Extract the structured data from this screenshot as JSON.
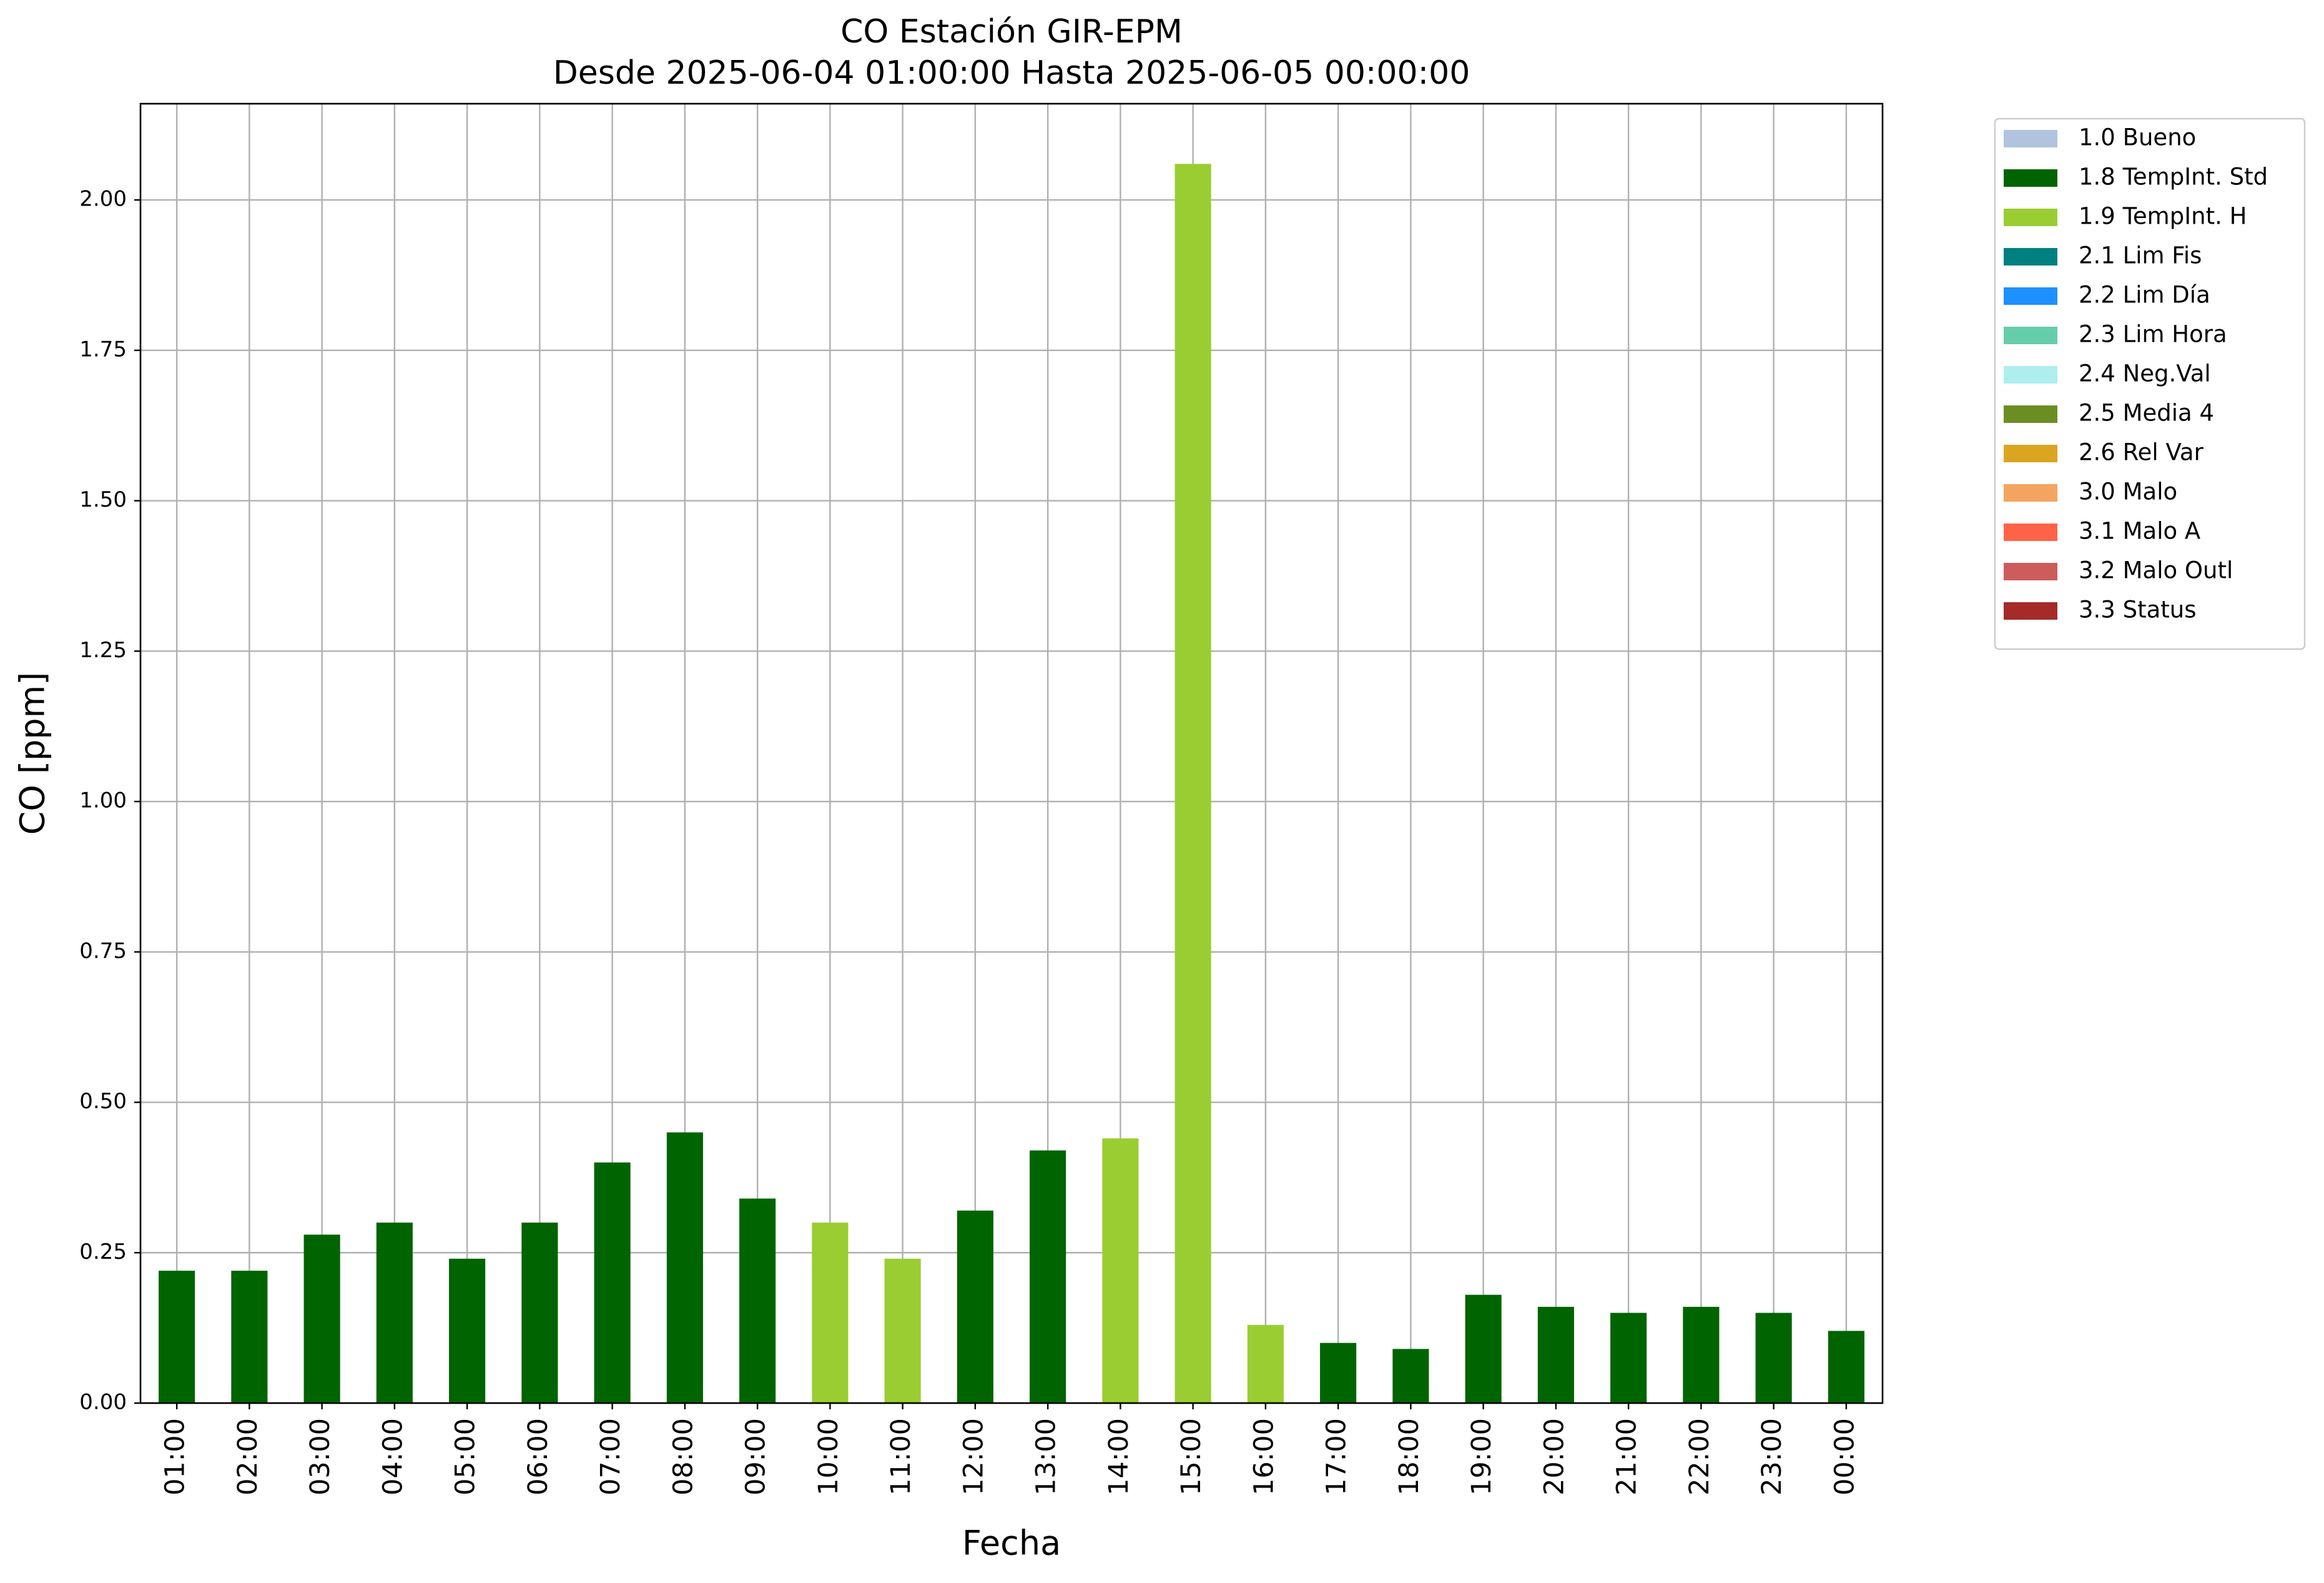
{
  "chart_data": {
    "type": "bar",
    "title": "CO Estación GIR-EPM",
    "subtitle": "Desde 2025-06-04 01:00:00 Hasta 2025-06-05 00:00:00",
    "x_label": "Fecha",
    "y_label": "CO [ppm]",
    "categories": [
      "01:00",
      "02:00",
      "03:00",
      "04:00",
      "05:00",
      "06:00",
      "07:00",
      "08:00",
      "09:00",
      "10:00",
      "11:00",
      "12:00",
      "13:00",
      "14:00",
      "15:00",
      "16:00",
      "17:00",
      "18:00",
      "19:00",
      "20:00",
      "21:00",
      "22:00",
      "23:00",
      "00:00"
    ],
    "series": [
      {
        "name": "1.0 Bueno",
        "color": "#b0c4de",
        "values": [
          null,
          null,
          null,
          null,
          null,
          null,
          null,
          null,
          null,
          null,
          null,
          null,
          null,
          null,
          null,
          null,
          null,
          null,
          null,
          null,
          null,
          null,
          null,
          null
        ]
      },
      {
        "name": "1.8 TempInt. Std",
        "color": "#006400",
        "values": [
          0.22,
          0.22,
          0.28,
          0.3,
          0.24,
          0.3,
          0.4,
          0.45,
          0.34,
          null,
          null,
          0.32,
          0.42,
          null,
          null,
          null,
          0.1,
          0.09,
          0.18,
          0.16,
          0.15,
          0.16,
          0.15,
          0.12
        ]
      },
      {
        "name": "1.9 TempInt. H",
        "color": "#9acd32",
        "values": [
          null,
          null,
          null,
          null,
          null,
          null,
          null,
          null,
          null,
          0.3,
          0.24,
          null,
          null,
          0.44,
          2.06,
          0.13,
          null,
          null,
          null,
          null,
          null,
          null,
          null,
          null
        ]
      },
      {
        "name": "2.1 Lim Fis",
        "color": "#008080",
        "values": [
          null,
          null,
          null,
          null,
          null,
          null,
          null,
          null,
          null,
          null,
          null,
          null,
          null,
          null,
          null,
          null,
          null,
          null,
          null,
          null,
          null,
          null,
          null,
          null
        ]
      },
      {
        "name": "2.2 Lim Día",
        "color": "#1e90ff",
        "values": [
          null,
          null,
          null,
          null,
          null,
          null,
          null,
          null,
          null,
          null,
          null,
          null,
          null,
          null,
          null,
          null,
          null,
          null,
          null,
          null,
          null,
          null,
          null,
          null
        ]
      },
      {
        "name": "2.3 Lim Hora",
        "color": "#66cdaa",
        "values": [
          null,
          null,
          null,
          null,
          null,
          null,
          null,
          null,
          null,
          null,
          null,
          null,
          null,
          null,
          null,
          null,
          null,
          null,
          null,
          null,
          null,
          null,
          null,
          null
        ]
      },
      {
        "name": "2.4 Neg.Val",
        "color": "#afeeee",
        "values": [
          null,
          null,
          null,
          null,
          null,
          null,
          null,
          null,
          null,
          null,
          null,
          null,
          null,
          null,
          null,
          null,
          null,
          null,
          null,
          null,
          null,
          null,
          null,
          null
        ]
      },
      {
        "name": "2.5 Media 4",
        "color": "#6b8e23",
        "values": [
          null,
          null,
          null,
          null,
          null,
          null,
          null,
          null,
          null,
          null,
          null,
          null,
          null,
          null,
          null,
          null,
          null,
          null,
          null,
          null,
          null,
          null,
          null,
          null
        ]
      },
      {
        "name": "2.6 Rel Var",
        "color": "#daa520",
        "values": [
          null,
          null,
          null,
          null,
          null,
          null,
          null,
          null,
          null,
          null,
          null,
          null,
          null,
          null,
          null,
          null,
          null,
          null,
          null,
          null,
          null,
          null,
          null,
          null
        ]
      },
      {
        "name": "3.0 Malo",
        "color": "#f4a460",
        "values": [
          null,
          null,
          null,
          null,
          null,
          null,
          null,
          null,
          null,
          null,
          null,
          null,
          null,
          null,
          null,
          null,
          null,
          null,
          null,
          null,
          null,
          null,
          null,
          null
        ]
      },
      {
        "name": "3.1 Malo A",
        "color": "#ff6347",
        "values": [
          null,
          null,
          null,
          null,
          null,
          null,
          null,
          null,
          null,
          null,
          null,
          null,
          null,
          null,
          null,
          null,
          null,
          null,
          null,
          null,
          null,
          null,
          null,
          null
        ]
      },
      {
        "name": "3.2 Malo Outl",
        "color": "#cd5c5c",
        "values": [
          null,
          null,
          null,
          null,
          null,
          null,
          null,
          null,
          null,
          null,
          null,
          null,
          null,
          null,
          null,
          null,
          null,
          null,
          null,
          null,
          null,
          null,
          null,
          null
        ]
      },
      {
        "name": "3.3 Status",
        "color": "#a52a2a",
        "values": [
          null,
          null,
          null,
          null,
          null,
          null,
          null,
          null,
          null,
          null,
          null,
          null,
          null,
          null,
          null,
          null,
          null,
          null,
          null,
          null,
          null,
          null,
          null,
          null
        ]
      }
    ],
    "ylim": [
      0,
      2.16
    ],
    "yticks": [
      {
        "value": 0,
        "label": "0.00"
      },
      0.25,
      {
        "value": 0.5,
        "label": "0.50"
      },
      0.75,
      {
        "value": 1,
        "label": "1.00"
      },
      1.25,
      {
        "value": 1.5,
        "label": "1.50"
      },
      1.75,
      {
        "value": 2,
        "label": "2.00"
      }
    ],
    "grid": true,
    "legend": "outside-right"
  }
}
